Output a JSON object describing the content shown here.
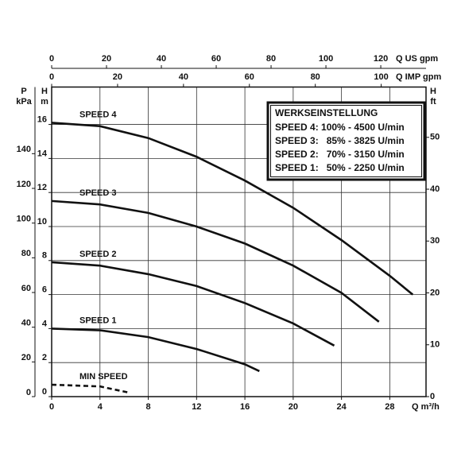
{
  "chart_data": {
    "type": "line",
    "legend_box": {
      "title": "WERKSEINSTELLUNG",
      "rows": [
        "SPEED 4: 100% - 4500 U/min",
        "SPEED 3:   85% - 3825 U/min",
        "SPEED 2:   70% - 3150 U/min",
        "SPEED 1:   50% - 2250 U/min"
      ]
    },
    "xlabel": "Q  m³/h",
    "xlim": [
      0,
      31
    ],
    "xticks": [
      0,
      4,
      8,
      12,
      16,
      20,
      24,
      28
    ],
    "ylabel": [
      "H",
      "m"
    ],
    "ylim": [
      0,
      18.2
    ],
    "yticks": [
      0,
      2,
      4,
      6,
      8,
      10,
      12,
      14,
      16
    ],
    "grid": true,
    "kpa_axis": {
      "label": [
        "P",
        "kPa"
      ],
      "lim": [
        0,
        178.4
      ],
      "ticks": [
        0,
        20,
        40,
        60,
        80,
        100,
        120,
        140
      ]
    },
    "ft_axis": {
      "label": [
        "H",
        "ft"
      ],
      "lim": [
        0,
        59.7
      ],
      "ticks": [
        0,
        10,
        20,
        30,
        40,
        50
      ]
    },
    "us_gpm_axis": {
      "label": "Q US gpm",
      "lim": [
        0,
        136.5
      ],
      "ticks": [
        0,
        20,
        40,
        60,
        80,
        100,
        120
      ]
    },
    "imp_gpm_axis": {
      "label": "Q IMP gpm",
      "lim": [
        0,
        113.6
      ],
      "ticks": [
        0,
        20,
        40,
        60,
        80,
        100
      ]
    },
    "series": [
      {
        "name": "SPEED 4",
        "color": "#111111",
        "dashed": false,
        "x": [
          0,
          4,
          8,
          12,
          16,
          20,
          24,
          28,
          29.9
        ],
        "values": [
          16.1,
          15.9,
          15.2,
          14.1,
          12.7,
          11.1,
          9.2,
          7.1,
          6.0
        ]
      },
      {
        "name": "SPEED 3",
        "color": "#111111",
        "dashed": false,
        "x": [
          0,
          4,
          8,
          12,
          16,
          20,
          24,
          27.1
        ],
        "values": [
          11.5,
          11.3,
          10.8,
          10.0,
          9.0,
          7.7,
          6.1,
          4.4
        ]
      },
      {
        "name": "SPEED 2",
        "color": "#111111",
        "dashed": false,
        "x": [
          0,
          4,
          8,
          12,
          16,
          20,
          23.4
        ],
        "values": [
          7.9,
          7.7,
          7.2,
          6.5,
          5.5,
          4.3,
          3.0
        ]
      },
      {
        "name": "SPEED 1",
        "color": "#111111",
        "dashed": false,
        "x": [
          0,
          4,
          8,
          12,
          16,
          17.2
        ],
        "values": [
          4.0,
          3.9,
          3.5,
          2.8,
          1.9,
          1.5
        ]
      },
      {
        "name": "MIN SPEED",
        "color": "#111111",
        "dashed": true,
        "x": [
          0,
          4,
          6.3
        ],
        "values": [
          0.7,
          0.6,
          0.25
        ]
      }
    ]
  }
}
